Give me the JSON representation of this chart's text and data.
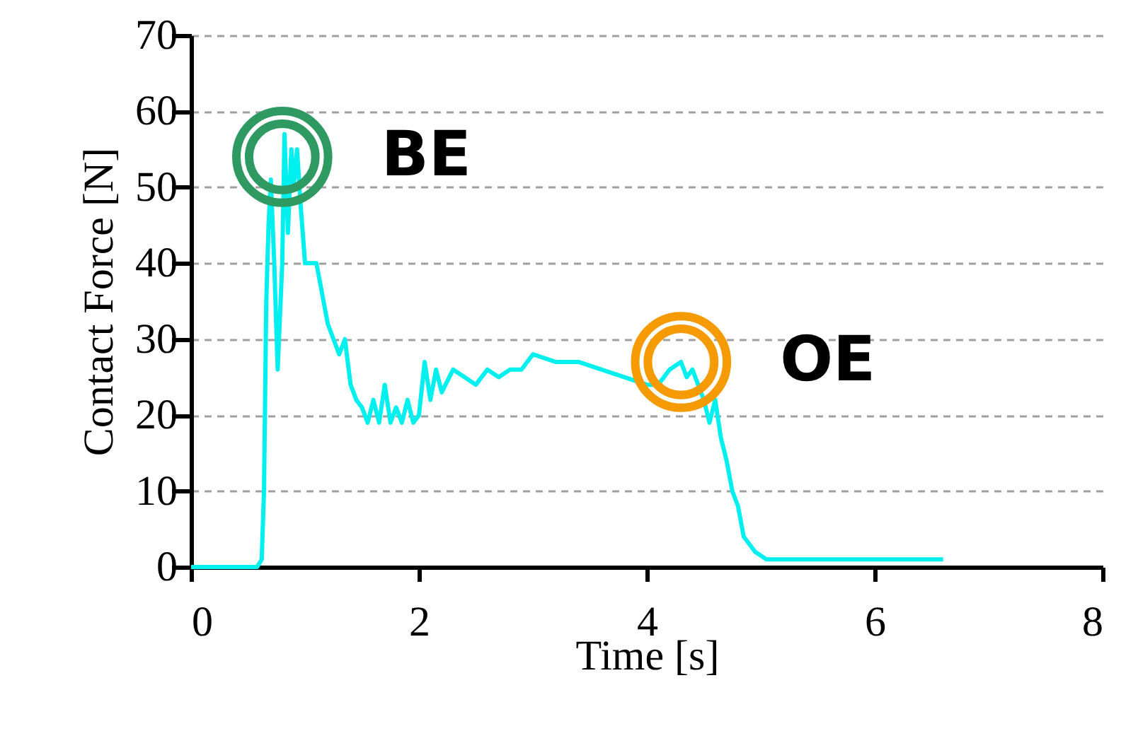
{
  "chart_data": {
    "type": "line",
    "xlabel": "Time [s]",
    "ylabel": "Contact Force [N]",
    "xlim": [
      0,
      8
    ],
    "xticks": [
      0,
      2,
      4,
      6,
      8
    ],
    "ylim": [
      0,
      70
    ],
    "yticks": [
      0,
      10,
      20,
      30,
      40,
      50,
      60,
      70
    ],
    "grid": "y",
    "marker": "none",
    "line_style": "solid",
    "series": [
      {
        "color": "#00f0f0",
        "x": [
          0,
          0.58,
          0.62,
          0.64,
          0.66,
          0.68,
          0.7,
          0.73,
          0.76,
          0.8,
          0.82,
          0.85,
          0.88,
          0.9,
          0.93,
          0.96,
          1.0,
          1.1,
          1.15,
          1.2,
          1.25,
          1.3,
          1.35,
          1.4,
          1.45,
          1.5,
          1.55,
          1.6,
          1.65,
          1.7,
          1.75,
          1.8,
          1.85,
          1.9,
          1.95,
          2.0,
          2.05,
          2.1,
          2.15,
          2.2,
          2.3,
          2.4,
          2.5,
          2.6,
          2.7,
          2.8,
          2.9,
          3.0,
          3.2,
          3.4,
          3.6,
          3.8,
          4.0,
          4.1,
          4.2,
          4.3,
          4.35,
          4.4,
          4.45,
          4.5,
          4.55,
          4.6,
          4.65,
          4.7,
          4.75,
          4.8,
          4.85,
          4.95,
          5.05,
          6.6
        ],
        "values": [
          0,
          0,
          1,
          10,
          35,
          45,
          51,
          40,
          26,
          40,
          57,
          44,
          55,
          50,
          55,
          48,
          40,
          40,
          36,
          32,
          30,
          28,
          30,
          24,
          22,
          21,
          19,
          22,
          19,
          24,
          19,
          21,
          19,
          22,
          19,
          20,
          27,
          22,
          26,
          23,
          26,
          25,
          24,
          26,
          25,
          26,
          26,
          28,
          27,
          27,
          26,
          25,
          24,
          24,
          26,
          27,
          25,
          26,
          24,
          22,
          19,
          22,
          17,
          14,
          10,
          8,
          4,
          2,
          1,
          1
        ]
      }
    ],
    "annotations": [
      {
        "text": "BE",
        "x": 0.8,
        "y": 54
      },
      {
        "text": "OE",
        "x": 4.3,
        "y": 27
      }
    ]
  }
}
